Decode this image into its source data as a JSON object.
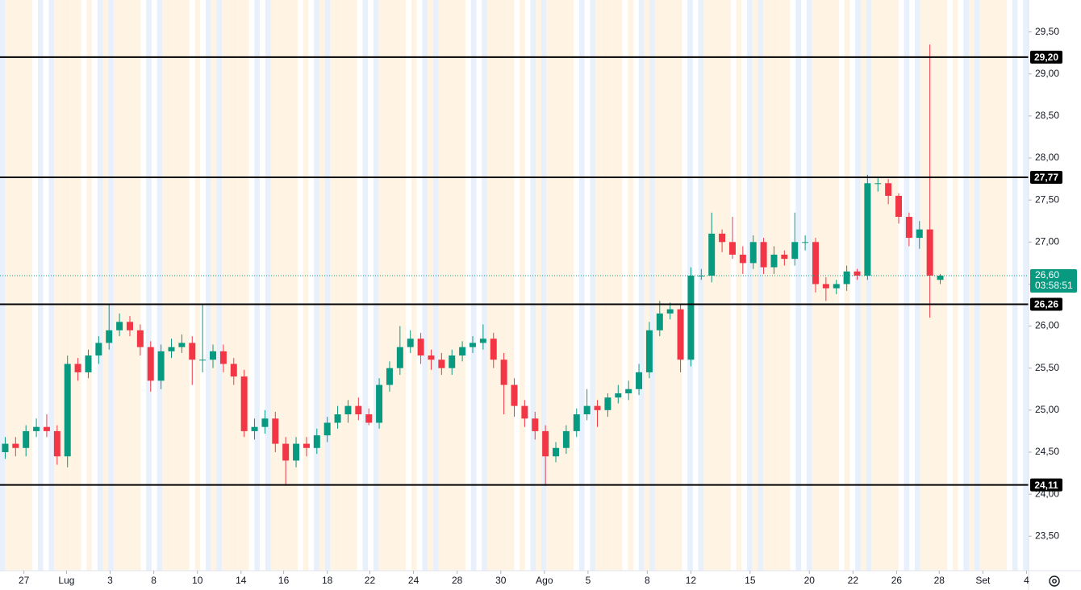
{
  "chart_data": {
    "type": "candlestick",
    "up_color": "#089981",
    "down_color": "#f23645",
    "level_color": "#000000",
    "xlim": [
      -0.5,
      98.5
    ],
    "xticks": [
      {
        "value": 1.8,
        "label": "27"
      },
      {
        "value": 5.9,
        "label": "Lug"
      },
      {
        "value": 10.1,
        "label": "3"
      },
      {
        "value": 14.3,
        "label": "8"
      },
      {
        "value": 18.5,
        "label": "10"
      },
      {
        "value": 22.7,
        "label": "14"
      },
      {
        "value": 26.8,
        "label": "16"
      },
      {
        "value": 31.0,
        "label": "18"
      },
      {
        "value": 35.1,
        "label": "22"
      },
      {
        "value": 39.3,
        "label": "24"
      },
      {
        "value": 43.5,
        "label": "28"
      },
      {
        "value": 47.7,
        "label": "30"
      },
      {
        "value": 51.9,
        "label": "Ago"
      },
      {
        "value": 56.1,
        "label": "5"
      },
      {
        "value": 61.8,
        "label": "8"
      },
      {
        "value": 66.0,
        "label": "12"
      },
      {
        "value": 71.7,
        "label": "15"
      },
      {
        "value": 77.4,
        "label": "20"
      },
      {
        "value": 81.6,
        "label": "22"
      },
      {
        "value": 85.8,
        "label": "26"
      },
      {
        "value": 89.9,
        "label": "28"
      },
      {
        "value": 94.1,
        "label": "Set"
      },
      {
        "value": 98.3,
        "label": "4"
      }
    ],
    "ylim": [
      23.09,
      29.88
    ],
    "yticks": [
      {
        "value": 23.5,
        "label": "23,50"
      },
      {
        "value": 24.0,
        "label": "24,00"
      },
      {
        "value": 24.5,
        "label": "24,50"
      },
      {
        "value": 25.0,
        "label": "25,00"
      },
      {
        "value": 25.5,
        "label": "25,50"
      },
      {
        "value": 26.0,
        "label": "26,00"
      },
      {
        "value": 26.5,
        "label": "26,50"
      },
      {
        "value": 27.0,
        "label": "27,00"
      },
      {
        "value": 27.5,
        "label": "27,50"
      },
      {
        "value": 28.0,
        "label": "28,00"
      },
      {
        "value": 28.5,
        "label": "28,50"
      },
      {
        "value": 29.0,
        "label": "29,00"
      },
      {
        "value": 29.5,
        "label": "29,50"
      }
    ],
    "levels": [
      {
        "value": 29.2,
        "label": "29,20"
      },
      {
        "value": 27.77,
        "label": "27,77"
      },
      {
        "value": 26.26,
        "label": "26,26"
      },
      {
        "value": 24.11,
        "label": "24,11"
      }
    ],
    "last_price": {
      "value": 26.6,
      "label": "26,60"
    },
    "countdown": "03:58:51",
    "candles": {
      "open": [
        24.5,
        24.6,
        24.55,
        24.75,
        24.8,
        24.75,
        24.45,
        25.55,
        25.45,
        25.65,
        25.8,
        25.95,
        26.05,
        25.95,
        25.75,
        25.35,
        25.7,
        25.75,
        25.8,
        25.6,
        25.6,
        25.7,
        25.55,
        25.4,
        24.75,
        24.8,
        24.9,
        24.6,
        24.4,
        24.6,
        24.55,
        24.7,
        24.85,
        24.95,
        25.05,
        24.95,
        24.85,
        25.3,
        25.5,
        25.75,
        25.85,
        25.65,
        25.6,
        25.5,
        25.65,
        25.75,
        25.8,
        25.85,
        25.6,
        25.3,
        25.05,
        24.9,
        24.75,
        24.45,
        24.55,
        24.75,
        24.95,
        25.05,
        25.0,
        25.15,
        25.2,
        25.25,
        25.45,
        25.95,
        26.15,
        26.2,
        25.6,
        26.6,
        26.6,
        27.1,
        27.0,
        26.85,
        26.75,
        27.0,
        26.7,
        26.85,
        26.8,
        27.0,
        27.0,
        26.5,
        26.45,
        26.5,
        26.65,
        26.6,
        27.7,
        27.7,
        27.55,
        27.3,
        27.05,
        27.15,
        26.55
      ],
      "high": [
        24.68,
        24.68,
        24.82,
        24.9,
        24.95,
        24.82,
        25.65,
        25.62,
        25.72,
        25.88,
        26.25,
        26.15,
        26.12,
        26.02,
        25.82,
        25.78,
        25.85,
        25.9,
        25.88,
        26.25,
        25.78,
        25.78,
        25.62,
        25.48,
        24.9,
        25.0,
        24.98,
        24.68,
        24.68,
        24.68,
        24.78,
        24.92,
        25.05,
        25.12,
        25.15,
        25.02,
        25.38,
        25.58,
        26.0,
        25.95,
        25.92,
        25.72,
        25.68,
        25.72,
        25.82,
        25.88,
        26.02,
        25.92,
        25.68,
        25.38,
        25.12,
        24.98,
        24.82,
        24.62,
        24.82,
        25.02,
        25.25,
        25.12,
        25.2,
        25.3,
        25.35,
        25.55,
        26.05,
        26.3,
        26.28,
        26.25,
        26.7,
        26.68,
        27.35,
        27.15,
        27.3,
        26.95,
        27.08,
        27.05,
        26.95,
        26.9,
        27.35,
        27.08,
        27.05,
        26.58,
        26.55,
        26.72,
        26.68,
        27.8,
        27.78,
        27.75,
        27.58,
        27.35,
        27.25,
        29.35,
        26.62
      ],
      "low": [
        24.42,
        24.45,
        24.45,
        24.68,
        24.68,
        24.35,
        24.32,
        25.35,
        25.38,
        25.55,
        25.72,
        25.88,
        25.88,
        25.65,
        25.22,
        25.25,
        25.62,
        25.68,
        25.3,
        25.45,
        25.5,
        25.45,
        25.3,
        24.68,
        24.65,
        24.72,
        24.5,
        24.1,
        24.32,
        24.45,
        24.48,
        24.62,
        24.78,
        24.85,
        24.88,
        24.82,
        24.78,
        25.22,
        25.42,
        25.68,
        25.55,
        25.48,
        25.42,
        25.42,
        25.58,
        25.68,
        25.72,
        25.5,
        24.95,
        24.92,
        24.8,
        24.65,
        24.1,
        24.38,
        24.48,
        24.68,
        24.88,
        24.8,
        24.92,
        25.08,
        25.12,
        25.18,
        25.38,
        25.88,
        26.08,
        25.45,
        25.52,
        26.55,
        26.52,
        26.88,
        26.8,
        26.62,
        26.68,
        26.62,
        26.62,
        26.72,
        26.72,
        26.9,
        26.4,
        26.3,
        26.38,
        26.42,
        26.55,
        26.55,
        27.6,
        27.45,
        27.22,
        26.95,
        26.92,
        26.1,
        26.5
      ],
      "close": [
        24.6,
        24.55,
        24.75,
        24.8,
        24.75,
        24.45,
        25.55,
        25.45,
        25.65,
        25.8,
        25.95,
        26.05,
        25.95,
        25.75,
        25.35,
        25.7,
        25.75,
        25.8,
        25.6,
        25.6,
        25.7,
        25.55,
        25.4,
        24.75,
        24.8,
        24.9,
        24.6,
        24.4,
        24.6,
        24.55,
        24.7,
        24.85,
        24.95,
        25.05,
        24.95,
        24.85,
        25.3,
        25.5,
        25.75,
        25.85,
        25.65,
        25.6,
        25.5,
        25.65,
        25.75,
        25.8,
        25.85,
        25.6,
        25.3,
        25.05,
        24.9,
        24.75,
        24.45,
        24.55,
        24.75,
        24.95,
        25.05,
        25.0,
        25.15,
        25.2,
        25.25,
        25.45,
        25.95,
        26.15,
        26.2,
        25.6,
        26.6,
        26.6,
        27.1,
        27.0,
        26.85,
        26.75,
        27.0,
        26.7,
        26.85,
        26.8,
        27.0,
        27.0,
        26.5,
        26.45,
        26.5,
        26.65,
        26.6,
        27.7,
        27.7,
        27.55,
        27.3,
        27.05,
        27.15,
        26.6,
        26.6
      ]
    }
  }
}
